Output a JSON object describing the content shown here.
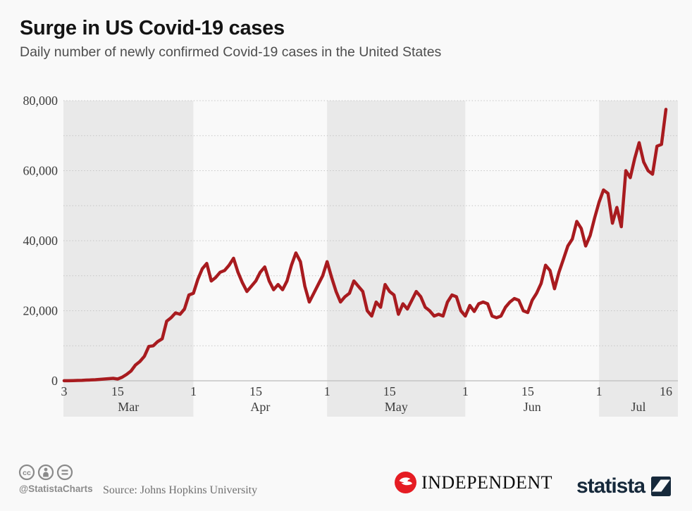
{
  "header": {
    "title": "Surge in US Covid-19 cases",
    "subtitle": "Daily number of newly confirmed Covid-19 cases in the United States"
  },
  "footer": {
    "license_icons": [
      "cc-icon",
      "attribution-person-icon",
      "no-derivatives-equals-icon"
    ],
    "handle": "@StatistaCharts",
    "source": "Source: Johns Hopkins University",
    "independent_logo_text": "INDEPENDENT",
    "statista_logo_text": "statista"
  },
  "colors": {
    "background": "#f9f9f9",
    "band_shaded": "#e9e9e9",
    "line": "#a81b1f",
    "grid": "#c4c4c4",
    "zero_axis": "#c6c6c6",
    "axis_text": "#3c3c3c",
    "independent_red": "#e51c23",
    "statista_navy": "#16293b"
  },
  "chart_data": {
    "type": "line",
    "title": "Surge in US Covid-19 cases",
    "subtitle": "Daily number of newly confirmed Covid-19 cases in the United States",
    "xlabel": "",
    "ylabel": "",
    "ylim": [
      0,
      80000
    ],
    "grid": "dotted horizontal lines every 10,000",
    "legend_position": "none",
    "x_range_labels": [
      "Mar 3",
      "Jul 16"
    ],
    "y_ticks": [
      {
        "value": 0,
        "label": "0"
      },
      {
        "value": 20000,
        "label": "20,000"
      },
      {
        "value": 40000,
        "label": "40,000"
      },
      {
        "value": 60000,
        "label": "60,000"
      },
      {
        "value": 80000,
        "label": "80,000"
      }
    ],
    "y_minor_grid_step": 10000,
    "x_ticks": [
      {
        "day": 0,
        "label": "3"
      },
      {
        "day": 12,
        "label": "15"
      },
      {
        "day": 29,
        "label": "1"
      },
      {
        "day": 43,
        "label": "15"
      },
      {
        "day": 59,
        "label": "1"
      },
      {
        "day": 73,
        "label": "15"
      },
      {
        "day": 90,
        "label": "1"
      },
      {
        "day": 104,
        "label": "15"
      },
      {
        "day": 120,
        "label": "1"
      },
      {
        "day": 135,
        "label": "16"
      }
    ],
    "months": [
      {
        "label": "Mar",
        "from_day": 0,
        "to_day": 29,
        "shaded": true
      },
      {
        "label": "Apr",
        "from_day": 29,
        "to_day": 59,
        "shaded": false
      },
      {
        "label": "May",
        "from_day": 59,
        "to_day": 90,
        "shaded": true
      },
      {
        "label": "Jun",
        "from_day": 90,
        "to_day": 120,
        "shaded": false
      },
      {
        "label": "Jul",
        "from_day": 120,
        "to_day": 135,
        "shaded": true
      }
    ],
    "series": [
      {
        "name": "Daily new confirmed Covid-19 cases (US)",
        "values": [
          20,
          30,
          60,
          100,
          120,
          200,
          250,
          300,
          400,
          500,
          600,
          700,
          500,
          1000,
          1800,
          2800,
          4500,
          5500,
          7000,
          9800,
          10000,
          11200,
          12000,
          17000,
          18000,
          19400,
          19000,
          20500,
          24500,
          25000,
          29000,
          32000,
          33500,
          28500,
          29500,
          31000,
          31500,
          33000,
          35000,
          31000,
          28000,
          25500,
          27000,
          28500,
          31000,
          32500,
          28500,
          26000,
          27500,
          26000,
          28500,
          33000,
          36500,
          34000,
          27000,
          22500,
          25000,
          27500,
          30000,
          34000,
          29500,
          25500,
          22500,
          24000,
          25000,
          28500,
          27000,
          25500,
          20000,
          18500,
          22500,
          21000,
          27500,
          25500,
          24500,
          19000,
          22000,
          20500,
          23000,
          25500,
          24000,
          21000,
          20000,
          18500,
          19000,
          18500,
          22500,
          24500,
          24000,
          20000,
          18500,
          21500,
          19800,
          22000,
          22500,
          22000,
          18500,
          18000,
          18500,
          21000,
          22500,
          23500,
          23000,
          20000,
          19500,
          23000,
          25000,
          27800,
          33000,
          31500,
          26300,
          31000,
          34700,
          38500,
          40500,
          45500,
          43500,
          38500,
          41500,
          46500,
          51000,
          54500,
          53500,
          45000,
          49500,
          44000,
          60000,
          58000,
          63500,
          68000,
          62500,
          60000,
          59000,
          67000,
          67500,
          77500
        ]
      }
    ]
  }
}
